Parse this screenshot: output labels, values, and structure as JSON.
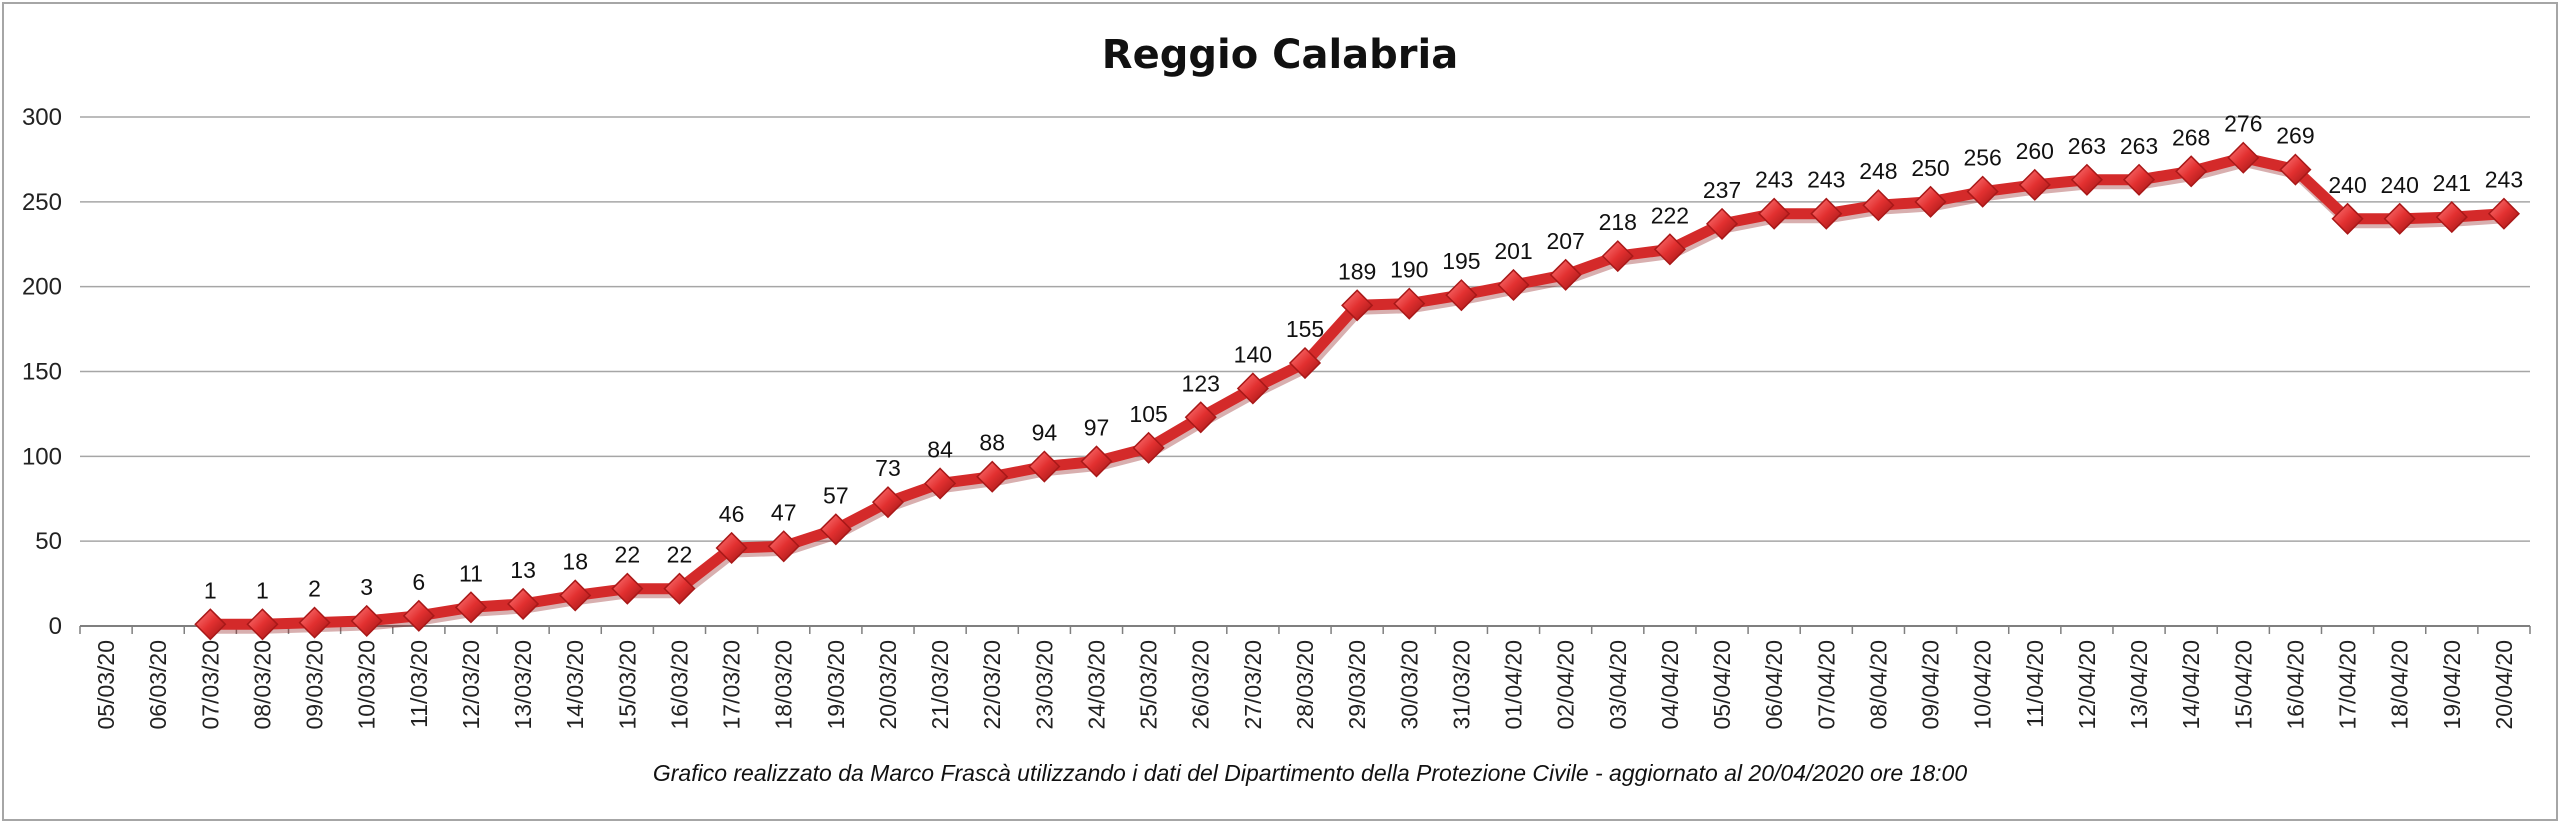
{
  "chart_data": {
    "type": "line",
    "title": "Reggio Calabria",
    "footnote": "Grafico  realizzato da Marco Frascà  utilizzando i dati del Dipartimento  della Protezione Civile - aggiornato al 20/04/2020 ore 18:00",
    "xlabel": "",
    "ylabel": "",
    "ylim": [
      0,
      300
    ],
    "yticks": [
      "0",
      "50",
      "100",
      "150",
      "200",
      "250",
      "300"
    ],
    "grid": true,
    "categories": [
      "05/03/20",
      "06/03/20",
      "07/03/20",
      "08/03/20",
      "09/03/20",
      "10/03/20",
      "11/03/20",
      "12/03/20",
      "13/03/20",
      "14/03/20",
      "15/03/20",
      "16/03/20",
      "17/03/20",
      "18/03/20",
      "19/03/20",
      "20/03/20",
      "21/03/20",
      "22/03/20",
      "23/03/20",
      "24/03/20",
      "25/03/20",
      "26/03/20",
      "27/03/20",
      "28/03/20",
      "29/03/20",
      "30/03/20",
      "31/03/20",
      "01/04/20",
      "02/04/20",
      "03/04/20",
      "04/04/20",
      "05/04/20",
      "06/04/20",
      "07/04/20",
      "08/04/20",
      "09/04/20",
      "10/04/20",
      "11/04/20",
      "12/04/20",
      "13/04/20",
      "14/04/20",
      "15/04/20",
      "16/04/20",
      "17/04/20",
      "18/04/20",
      "19/04/20",
      "20/04/20"
    ],
    "series": [
      {
        "values": [
          null,
          null,
          1,
          1,
          2,
          3,
          6,
          11,
          13,
          18,
          22,
          22,
          46,
          47,
          57,
          73,
          84,
          88,
          94,
          97,
          105,
          123,
          140,
          155,
          189,
          190,
          195,
          201,
          207,
          218,
          222,
          237,
          243,
          243,
          248,
          250,
          256,
          260,
          263,
          263,
          268,
          276,
          269,
          240,
          240,
          241,
          243
        ],
        "color": "#d42a2a",
        "marker": "diamond"
      }
    ]
  }
}
